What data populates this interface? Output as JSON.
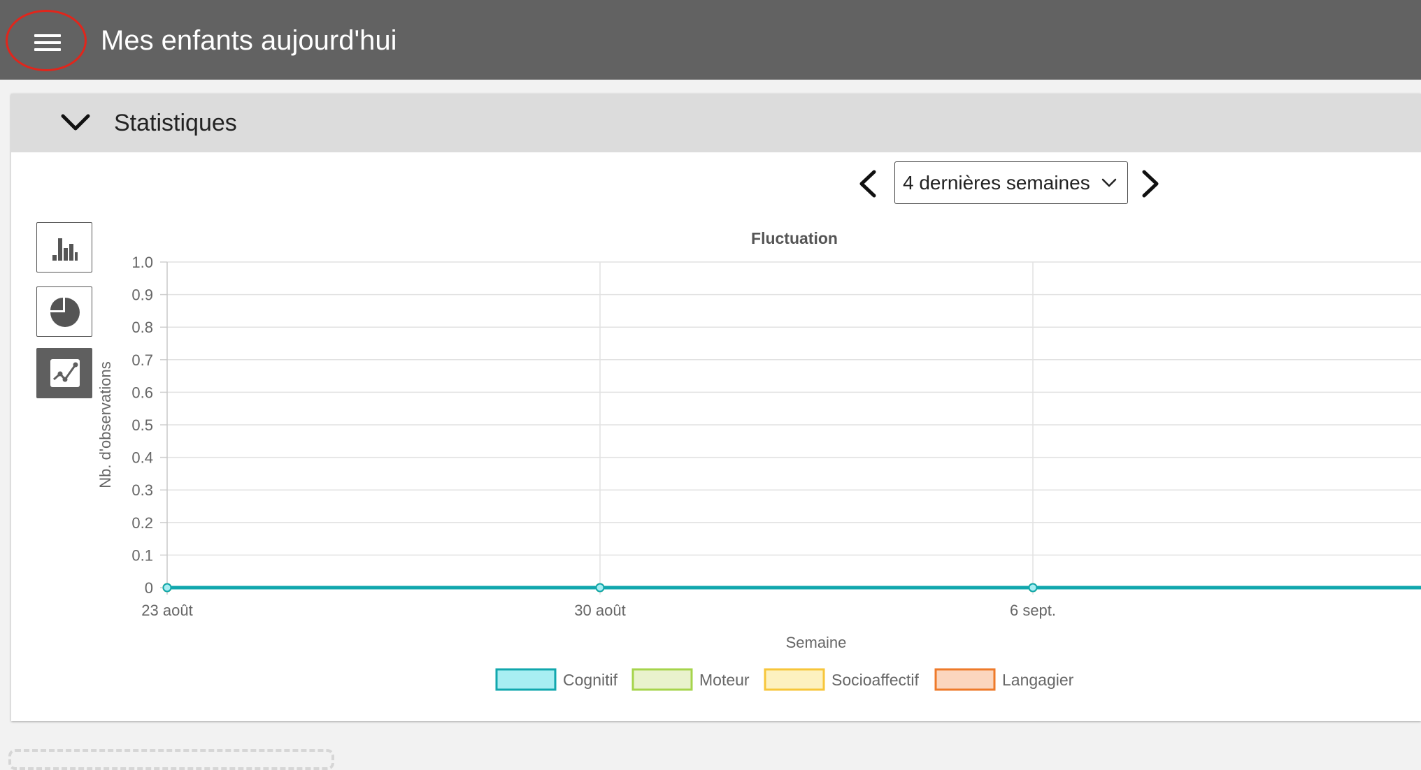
{
  "header": {
    "title": "Mes enfants aujourd'hui",
    "menu_icon": "hamburger-menu-icon"
  },
  "panel": {
    "title": "Statistiques"
  },
  "range": {
    "selected": "4 dernières semaines"
  },
  "chart_types": [
    {
      "icon": "bar-chart-icon",
      "active": false
    },
    {
      "icon": "pie-chart-icon",
      "active": false
    },
    {
      "icon": "line-chart-icon",
      "active": true
    }
  ],
  "chart_data": {
    "type": "line",
    "title": "Fluctuation",
    "xlabel": "Semaine",
    "ylabel": "Nb. d'observations",
    "ylim": [
      0,
      1
    ],
    "yticks": [
      "1.0",
      "0.9",
      "0.8",
      "0.7",
      "0.6",
      "0.5",
      "0.4",
      "0.3",
      "0.2",
      "0.1",
      "0"
    ],
    "categories": [
      "23 août",
      "30 août",
      "6 sept."
    ],
    "grid": true,
    "legend_position": "bottom",
    "series": [
      {
        "name": "Cognitif",
        "values": [
          0,
          0,
          0
        ],
        "color": "#11a7ad",
        "fill": "#a8eef2"
      },
      {
        "name": "Moteur",
        "values": [
          0,
          0,
          0
        ],
        "color": "#a6d44c",
        "fill": "#e9f2cd"
      },
      {
        "name": "Socioaffectif",
        "values": [
          0,
          0,
          0
        ],
        "color": "#f7c63a",
        "fill": "#fdf1c0"
      },
      {
        "name": "Langagier",
        "values": [
          0,
          0,
          0
        ],
        "color": "#ee7a2a",
        "fill": "#fbd6be"
      }
    ]
  }
}
